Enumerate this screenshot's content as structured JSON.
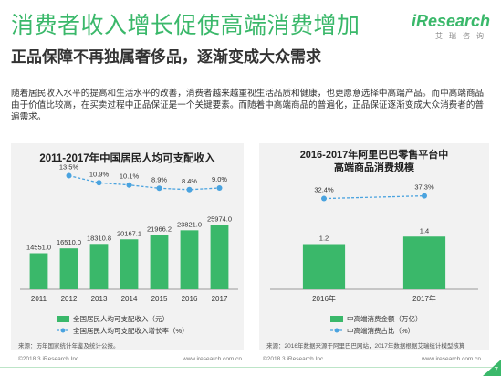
{
  "page": {
    "title": "消费者收入增长促使高端消费增加",
    "subtitle": "正品保障不再独属奢侈品，逐渐变成大众需求",
    "body": "随着居民收入水平的提高和生活水平的改善，消费者越来越重视生活品质和健康，也更愿意选择中高端产品。而中高端商品由于价值比较高，在买卖过程中正品保证是一个关键要素。而随着中高端商品的普遍化，正品保证逐渐变成大众消费者的普遍需求。",
    "logo": "iResearch",
    "logo_sub": "艾瑞咨询",
    "page_number": "7",
    "colors": {
      "green": "#3ab86a",
      "line": "#4aa3df",
      "panel": "#f2f2f2"
    }
  },
  "left_panel": {
    "source": "来源：历年国家统计年鉴及统计公报。",
    "footer_left": "©2018.3 iResearch Inc",
    "footer_right": "www.iresearch.com.cn"
  },
  "right_panel": {
    "source": "来源：2016年数据来源于阿里巴巴网站，2017年数据根据艾瑞统计模型核算",
    "footer_left": "©2018.3 iResearch Inc",
    "footer_right": "www.iresearch.com.cn"
  },
  "chart_data": [
    {
      "type": "bar",
      "title": "2011-2017年中国居民人均可支配收入",
      "categories": [
        "2011",
        "2012",
        "2013",
        "2014",
        "2015",
        "2016",
        "2017"
      ],
      "series": [
        {
          "name": "全国居民人均可支配收入（元）",
          "type": "bar",
          "values": [
            14551.0,
            16510.0,
            18310.8,
            20167.1,
            21966.2,
            23821.0,
            25974.0
          ],
          "labels": [
            "14551.0",
            "16510.0",
            "18310.8",
            "20167.1",
            "21966.2",
            "23821.0",
            "25974.0"
          ]
        },
        {
          "name": "全国居民人均可支配收入增长率（%）",
          "type": "line",
          "values": [
            null,
            13.5,
            10.9,
            10.1,
            8.9,
            8.4,
            9.0
          ],
          "labels": [
            "",
            "13.5%",
            "10.9%",
            "10.1%",
            "8.9%",
            "8.4%",
            "9.0%"
          ]
        }
      ],
      "legend": "bottom",
      "grid": false
    },
    {
      "type": "bar",
      "title": "2016-2017年阿里巴巴零售平台中高端商品消费规模",
      "categories": [
        "2016年",
        "2017年"
      ],
      "series": [
        {
          "name": "中高端消费金额（万亿）",
          "type": "bar",
          "values": [
            1.2,
            1.4
          ],
          "labels": [
            "1.2",
            "1.4"
          ]
        },
        {
          "name": "中高端消费占比（%）",
          "type": "line",
          "values": [
            32.4,
            37.3
          ],
          "labels": [
            "32.4%",
            "37.3%"
          ]
        }
      ],
      "legend": "bottom",
      "grid": false
    }
  ]
}
